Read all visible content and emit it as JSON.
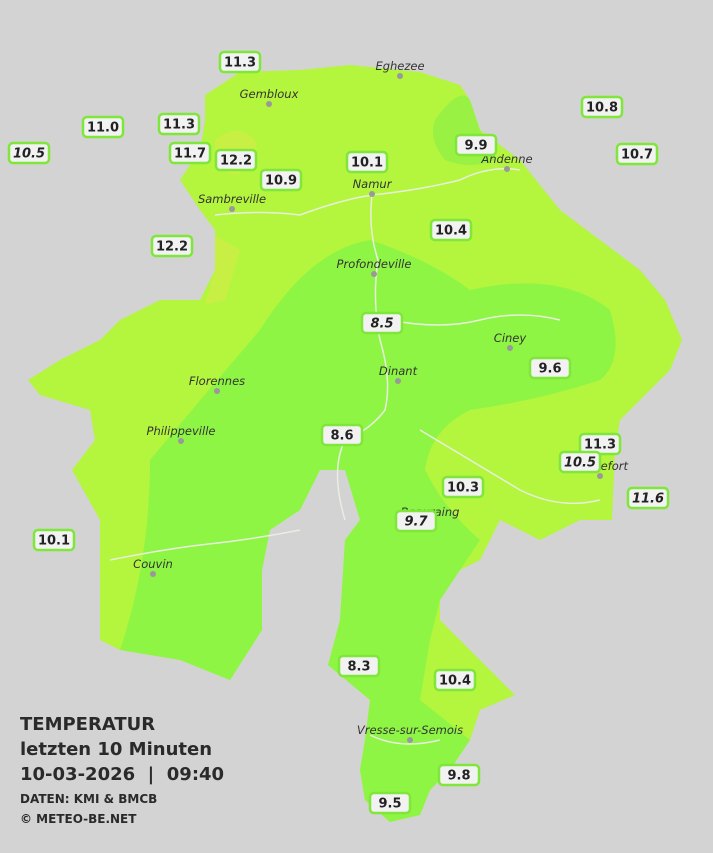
{
  "header": {
    "title": "TEMPERATUR",
    "period": "letzten 10 Minuten",
    "timestamp": "10-03-2026  |  09:40",
    "source": "DATEN: KMI & BMCB",
    "copyright": "© METEO-BE.NET"
  },
  "cities": [
    "Eghezee",
    "Gembloux",
    "Andenne",
    "Namur",
    "Sambreville",
    "Profondeville",
    "Ciney",
    "Dinant",
    "Florennes",
    "Philippeville",
    "Rochefort",
    "Beauraing",
    "Couvin",
    "Vresse-sur-Semois"
  ],
  "stations": [
    "11.3",
    "11.0",
    "11.3",
    "10.5",
    "11.7",
    "12.2",
    "10.9",
    "10.1",
    "9.9",
    "10.8",
    "10.7",
    "10.4",
    "12.2",
    "8.5",
    "9.6",
    "8.6",
    "11.3",
    "10.5",
    "10.3",
    "11.6",
    "9.7",
    "10.1",
    "8.3",
    "10.4",
    "9.8",
    "9.5"
  ]
}
